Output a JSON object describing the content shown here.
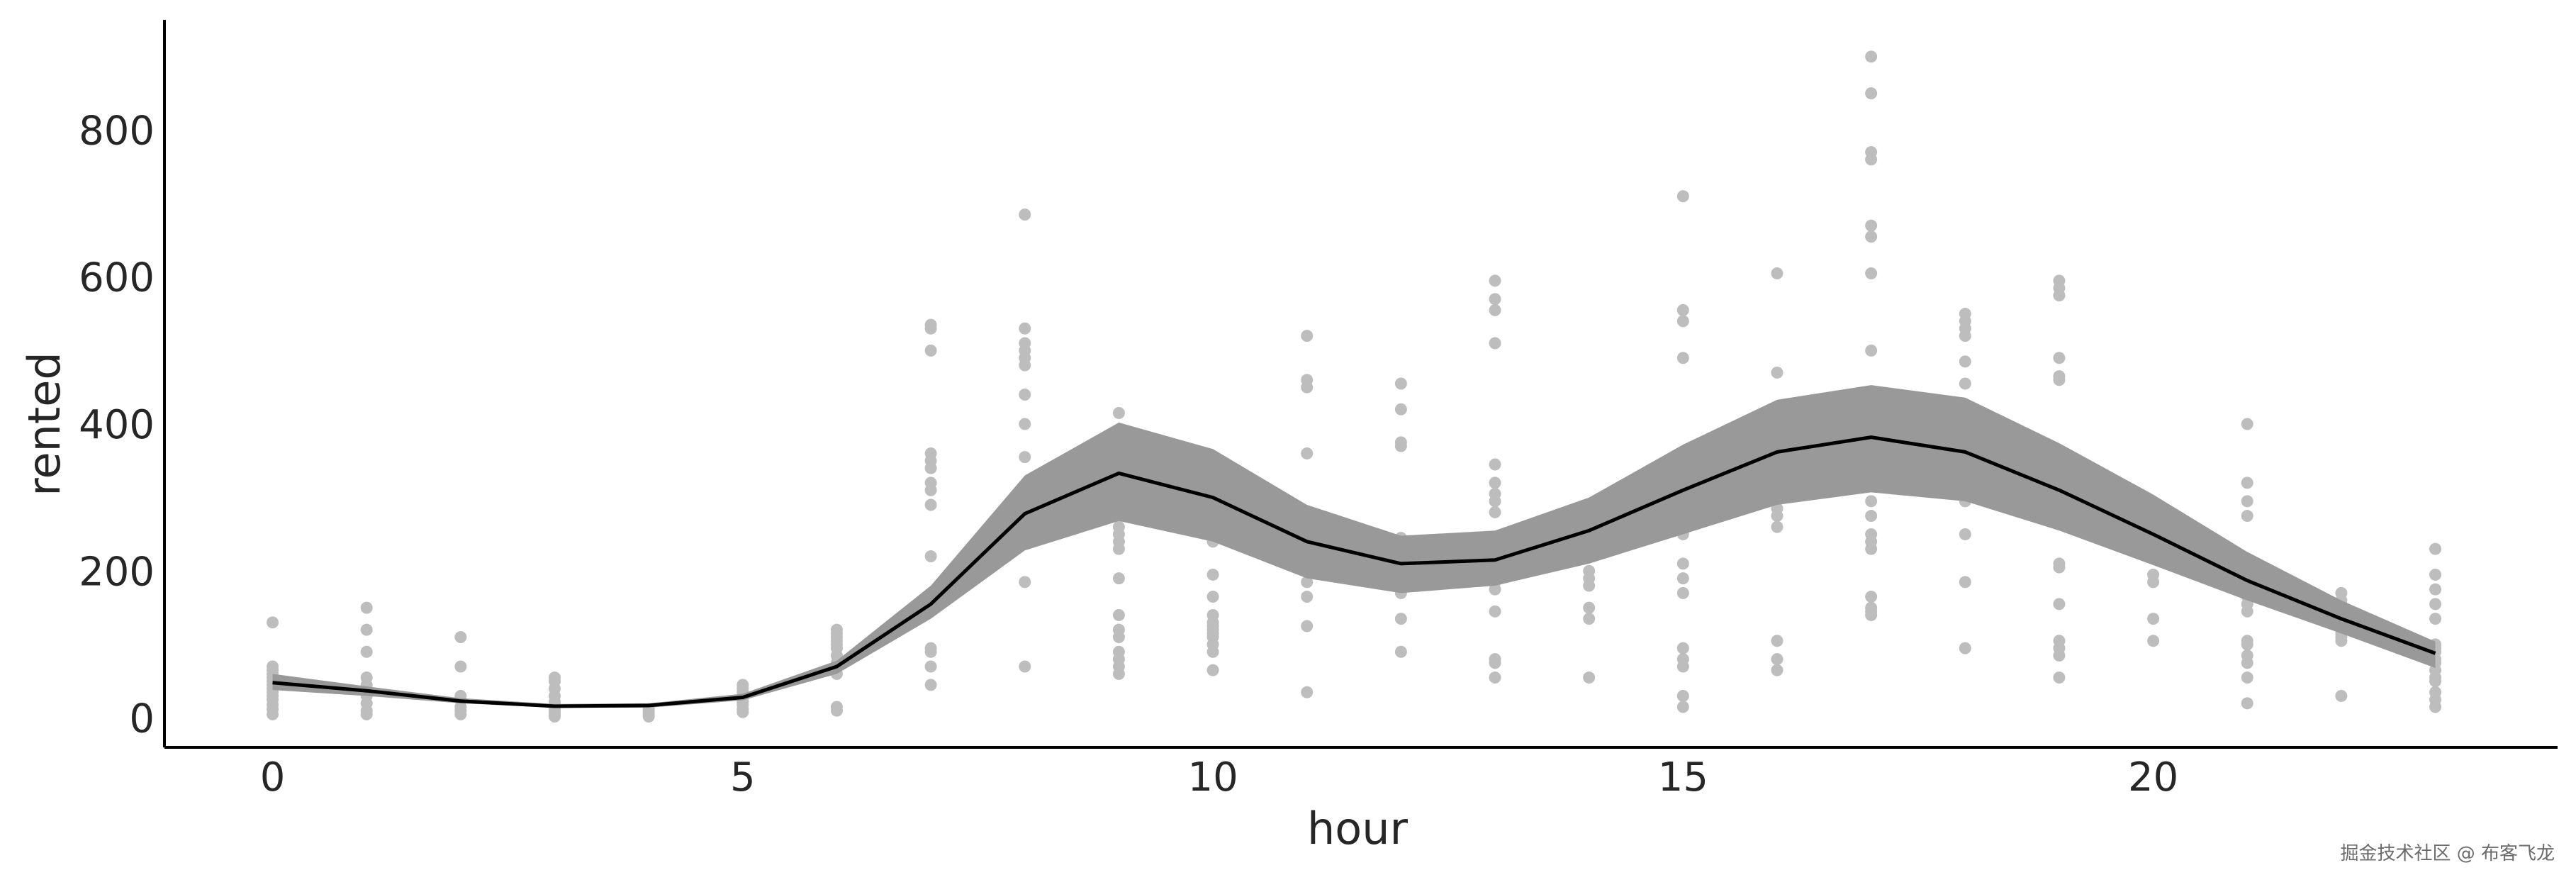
{
  "chart_data": {
    "type": "line",
    "title": "",
    "xlabel": "hour",
    "ylabel": "rented",
    "xlim": [
      -1.15,
      24.3
    ],
    "ylim": [
      -40,
      950
    ],
    "xticks": [
      0,
      5,
      10,
      15,
      20
    ],
    "yticks": [
      0,
      200,
      400,
      600,
      800
    ],
    "grid": false,
    "colors": {
      "points": "#bdbdbd",
      "band": "#999999",
      "line": "#000000",
      "axis": "#000000"
    },
    "mean_line": {
      "x": [
        0,
        1,
        2,
        3,
        4,
        5,
        6,
        7,
        8,
        9,
        10,
        11,
        12,
        13,
        14,
        15,
        16,
        17,
        18,
        19,
        20,
        21,
        22,
        23
      ],
      "y": [
        48,
        37,
        23,
        16,
        17,
        28,
        70,
        155,
        278,
        333,
        300,
        240,
        210,
        215,
        255,
        310,
        362,
        382,
        362,
        310,
        250,
        187,
        135,
        88
      ]
    },
    "band": {
      "x": [
        0,
        1,
        2,
        3,
        4,
        5,
        6,
        7,
        8,
        9,
        10,
        11,
        12,
        13,
        14,
        15,
        16,
        17,
        18,
        19,
        20,
        21,
        22,
        23
      ],
      "lower": [
        38,
        30,
        20,
        14,
        14,
        24,
        60,
        135,
        228,
        268,
        240,
        190,
        170,
        180,
        210,
        250,
        290,
        307,
        295,
        255,
        208,
        160,
        115,
        68
      ],
      "upper": [
        60,
        43,
        27,
        19,
        20,
        33,
        78,
        180,
        330,
        402,
        366,
        290,
        248,
        255,
        300,
        372,
        433,
        453,
        436,
        374,
        304,
        226,
        160,
        104
      ]
    },
    "points": [
      {
        "hour": 0,
        "values": [
          5,
          12,
          18,
          25,
          30,
          35,
          40,
          45,
          50,
          55,
          60,
          65,
          70,
          130
        ]
      },
      {
        "hour": 1,
        "values": [
          5,
          10,
          20,
          30,
          40,
          45,
          55,
          90,
          120,
          150
        ]
      },
      {
        "hour": 2,
        "values": [
          5,
          10,
          15,
          25,
          30,
          70,
          110
        ]
      },
      {
        "hour": 3,
        "values": [
          2,
          5,
          8,
          12,
          18,
          22,
          30,
          40,
          50,
          55
        ]
      },
      {
        "hour": 4,
        "values": [
          2,
          5,
          8,
          12
        ]
      },
      {
        "hour": 5,
        "values": [
          8,
          12,
          18,
          22,
          28,
          35,
          40,
          45
        ]
      },
      {
        "hour": 6,
        "values": [
          10,
          15,
          60,
          70,
          75,
          85,
          95,
          100,
          105,
          110,
          115,
          120
        ]
      },
      {
        "hour": 7,
        "values": [
          45,
          70,
          90,
          95,
          150,
          220,
          290,
          310,
          320,
          340,
          350,
          360,
          500,
          530,
          535
        ]
      },
      {
        "hour": 8,
        "values": [
          70,
          185,
          240,
          250,
          355,
          400,
          440,
          480,
          490,
          500,
          510,
          530,
          685
        ]
      },
      {
        "hour": 9,
        "values": [
          60,
          70,
          80,
          90,
          110,
          120,
          140,
          190,
          230,
          240,
          250,
          260,
          280,
          300,
          330,
          415
        ]
      },
      {
        "hour": 10,
        "values": [
          65,
          90,
          100,
          110,
          115,
          120,
          125,
          130,
          140,
          165,
          195,
          240,
          305
        ]
      },
      {
        "hour": 11,
        "values": [
          35,
          125,
          165,
          185,
          215,
          225,
          235,
          255,
          260,
          360,
          450,
          460,
          520
        ]
      },
      {
        "hour": 12,
        "values": [
          90,
          135,
          170,
          175,
          200,
          225,
          235,
          245,
          370,
          375,
          420,
          455
        ]
      },
      {
        "hour": 13,
        "values": [
          55,
          75,
          80,
          145,
          175,
          185,
          190,
          225,
          235,
          280,
          295,
          305,
          320,
          345,
          510,
          555,
          570,
          595
        ]
      },
      {
        "hour": 14,
        "values": [
          55,
          135,
          150,
          180,
          190,
          200,
          230,
          240,
          255,
          260,
          265
        ]
      },
      {
        "hour": 15,
        "values": [
          15,
          30,
          70,
          80,
          95,
          170,
          190,
          210,
          250,
          270,
          275,
          300,
          320,
          335,
          490,
          540,
          555,
          710
        ]
      },
      {
        "hour": 16,
        "values": [
          65,
          80,
          105,
          260,
          275,
          285,
          300,
          310,
          320,
          405,
          470,
          605
        ]
      },
      {
        "hour": 17,
        "values": [
          140,
          145,
          150,
          165,
          230,
          240,
          250,
          275,
          295,
          500,
          605,
          655,
          670,
          760,
          770,
          850,
          900
        ]
      },
      {
        "hour": 18,
        "values": [
          95,
          185,
          250,
          295,
          420,
          455,
          485,
          520,
          530,
          540,
          550
        ]
      },
      {
        "hour": 19,
        "values": [
          55,
          85,
          95,
          105,
          155,
          205,
          210,
          305,
          350,
          355,
          460,
          465,
          490,
          575,
          585,
          595
        ]
      },
      {
        "hour": 20,
        "values": [
          105,
          135,
          185,
          195,
          220,
          230,
          245,
          260,
          270,
          280,
          285
        ]
      },
      {
        "hour": 21,
        "values": [
          20,
          55,
          75,
          85,
          100,
          105,
          145,
          155,
          165,
          170,
          190,
          215,
          275,
          295,
          320,
          400
        ]
      },
      {
        "hour": 22,
        "values": [
          30,
          105,
          110,
          115,
          125,
          130,
          135,
          140,
          145,
          150,
          155,
          160,
          170
        ]
      },
      {
        "hour": 23,
        "values": [
          15,
          25,
          35,
          50,
          55,
          65,
          75,
          80,
          90,
          95,
          100,
          135,
          155,
          175,
          195,
          230
        ]
      }
    ]
  },
  "watermark": "掘金技术社区 @ 布客飞龙"
}
